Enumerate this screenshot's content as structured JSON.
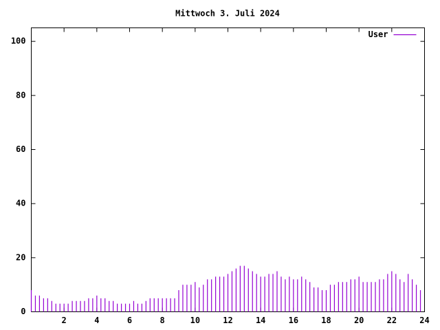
{
  "chart_data": {
    "type": "impulse",
    "title": "Mittwoch 3. Juli 2024",
    "x": [
      0,
      0.25,
      0.5,
      0.75,
      1,
      1.25,
      1.5,
      1.75,
      2,
      2.25,
      2.5,
      2.75,
      3,
      3.25,
      3.5,
      3.75,
      4,
      4.25,
      4.5,
      4.75,
      5,
      5.25,
      5.5,
      5.75,
      6,
      6.25,
      6.5,
      6.75,
      7,
      7.25,
      7.5,
      7.75,
      8,
      8.25,
      8.5,
      8.75,
      9,
      9.25,
      9.5,
      9.75,
      10,
      10.25,
      10.5,
      10.75,
      11,
      11.25,
      11.5,
      11.75,
      12,
      12.25,
      12.5,
      12.75,
      13,
      13.25,
      13.5,
      13.75,
      14,
      14.25,
      14.5,
      14.75,
      15,
      15.25,
      15.5,
      15.75,
      16,
      16.25,
      16.5,
      16.75,
      17,
      17.25,
      17.5,
      17.75,
      18,
      18.25,
      18.5,
      18.75,
      19,
      19.25,
      19.5,
      19.75,
      20,
      20.25,
      20.5,
      20.75,
      21,
      21.25,
      21.5,
      21.75,
      22,
      22.25,
      22.5,
      22.75,
      23,
      23.25,
      23.5,
      23.75
    ],
    "series": [
      {
        "name": "User",
        "color": "#9400d3",
        "values": [
          8,
          6,
          6,
          5,
          5,
          4,
          3,
          3,
          3,
          3,
          4,
          4,
          4,
          4,
          5,
          5,
          6,
          5,
          5,
          4,
          4,
          3,
          3,
          3,
          3,
          4,
          3,
          3,
          4,
          5,
          5,
          5,
          5,
          5,
          5,
          5,
          8,
          10,
          10,
          10,
          11,
          9,
          10,
          12,
          12,
          13,
          13,
          13,
          14,
          15,
          16,
          17,
          17,
          16,
          15,
          14,
          13,
          13,
          14,
          14,
          15,
          13,
          12,
          13,
          12,
          12,
          13,
          12,
          11,
          9,
          9,
          8,
          8,
          10,
          10,
          11,
          11,
          11,
          12,
          12,
          13,
          11,
          11,
          11,
          11,
          12,
          12,
          14,
          15,
          14,
          12,
          11,
          14,
          12,
          10,
          8
        ]
      }
    ],
    "xlim": [
      0,
      24
    ],
    "xticks": [
      2,
      4,
      6,
      8,
      10,
      12,
      14,
      16,
      18,
      20,
      22,
      24
    ],
    "ylim": [
      0,
      105
    ],
    "yticks": [
      0,
      20,
      40,
      60,
      80,
      100
    ],
    "legend": "top-right"
  }
}
